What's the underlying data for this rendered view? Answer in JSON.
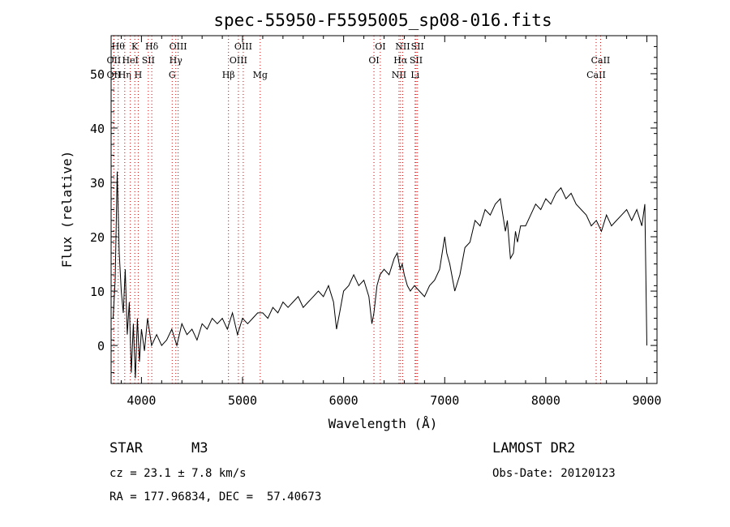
{
  "chart_data": {
    "type": "line",
    "title": "spec-55950-F5595005_sp08-016.fits",
    "xlabel": "Wavelength (Å)",
    "ylabel": "Flux (relative)",
    "xlim": [
      3700,
      9100
    ],
    "ylim": [
      -7,
      57
    ],
    "xticks": [
      4000,
      5000,
      6000,
      7000,
      8000,
      9000
    ],
    "yticks": [
      0,
      10,
      20,
      30,
      40,
      50
    ],
    "grid": false,
    "legend": "none",
    "line_color": "#000000",
    "marker_color": "#cc0000",
    "series": [
      {
        "x": [
          3720,
          3740,
          3760,
          3780,
          3800,
          3820,
          3840,
          3860,
          3880,
          3900,
          3920,
          3940,
          3960,
          3980,
          4000,
          4030,
          4060,
          4100,
          4150,
          4200,
          4250,
          4300,
          4350,
          4400,
          4450,
          4500,
          4550,
          4600,
          4650,
          4700,
          4750,
          4800,
          4850,
          4900,
          4950,
          5000,
          5050,
          5100,
          5150,
          5200,
          5250,
          5300,
          5350,
          5400,
          5450,
          5500,
          5550,
          5600,
          5650,
          5700,
          5750,
          5800,
          5850,
          5900,
          5930,
          5960,
          6000,
          6050,
          6100,
          6150,
          6200,
          6250,
          6280,
          6300,
          6330,
          6360,
          6400,
          6450,
          6500,
          6530,
          6560,
          6580,
          6600,
          6630,
          6660,
          6700,
          6750,
          6800,
          6850,
          6900,
          6950,
          7000,
          7020,
          7050,
          7100,
          7150,
          7200,
          7250,
          7300,
          7350,
          7400,
          7450,
          7500,
          7550,
          7600,
          7620,
          7650,
          7680,
          7700,
          7720,
          7750,
          7800,
          7850,
          7900,
          7950,
          8000,
          8050,
          8100,
          8150,
          8200,
          8250,
          8300,
          8350,
          8400,
          8450,
          8500,
          8550,
          8600,
          8650,
          8700,
          8750,
          8800,
          8850,
          8900,
          8950,
          8980,
          9000
        ],
        "y": [
          5,
          12,
          32,
          17,
          10,
          6,
          14,
          2,
          8,
          -5,
          4,
          -6,
          5,
          -3,
          3,
          -1,
          5,
          0,
          2,
          0,
          1,
          3,
          0,
          4,
          2,
          3,
          1,
          4,
          3,
          5,
          4,
          5,
          3,
          6,
          2,
          5,
          4,
          5,
          6,
          6,
          5,
          7,
          6,
          8,
          7,
          8,
          9,
          7,
          8,
          9,
          10,
          9,
          11,
          8,
          3,
          6,
          10,
          11,
          13,
          11,
          12,
          9,
          4,
          6,
          11,
          13,
          14,
          13,
          16,
          17,
          14,
          15,
          13,
          11,
          10,
          11,
          10,
          9,
          11,
          12,
          14,
          20,
          17,
          15,
          10,
          13,
          18,
          19,
          23,
          22,
          25,
          24,
          26,
          27,
          21,
          23,
          16,
          17,
          21,
          19,
          22,
          22,
          24,
          26,
          25,
          27,
          26,
          28,
          29,
          27,
          28,
          26,
          25,
          24,
          22,
          23,
          21,
          24,
          22,
          23,
          24,
          25,
          23,
          25,
          22,
          26,
          0
        ]
      }
    ],
    "line_markers": [
      {
        "wave": 3770,
        "label": "Hθ",
        "row": 0
      },
      {
        "wave": 3727,
        "label": "OII",
        "row": 1
      },
      {
        "wave": 3727,
        "label": "OII",
        "row": 2
      },
      {
        "wave": 3835,
        "label": "Hη",
        "row": 2
      },
      {
        "wave": 3890,
        "label": "HeI",
        "row": 1
      },
      {
        "wave": 3934,
        "label": "K",
        "row": 0
      },
      {
        "wave": 3968,
        "label": "H",
        "row": 2
      },
      {
        "wave": 4068,
        "label": "SII",
        "row": 1
      },
      {
        "wave": 4102,
        "label": "Hδ",
        "row": 0
      },
      {
        "wave": 4340,
        "label": "Hγ",
        "row": 1
      },
      {
        "wave": 4363,
        "label": "OIII",
        "row": 0
      },
      {
        "wave": 4304,
        "label": "G",
        "row": 2
      },
      {
        "wave": 4861,
        "label": "Hβ",
        "row": 2
      },
      {
        "wave": 4959,
        "label": "OIII",
        "row": 1
      },
      {
        "wave": 5007,
        "label": "OIII",
        "row": 0
      },
      {
        "wave": 5175,
        "label": "Mg",
        "row": 2
      },
      {
        "wave": 6300,
        "label": "OI",
        "row": 1
      },
      {
        "wave": 6363,
        "label": "OI",
        "row": 0
      },
      {
        "wave": 6548,
        "label": "NII",
        "row": 2
      },
      {
        "wave": 6563,
        "label": "Hα",
        "row": 1
      },
      {
        "wave": 6584,
        "label": "NII",
        "row": 0
      },
      {
        "wave": 6707,
        "label": "Li",
        "row": 2
      },
      {
        "wave": 6717,
        "label": "SII",
        "row": 1
      },
      {
        "wave": 6731,
        "label": "SII",
        "row": 0
      },
      {
        "wave": 8498,
        "label": "CaII",
        "row": 2
      },
      {
        "wave": 8542,
        "label": "CaII",
        "row": 1
      }
    ]
  },
  "footer": {
    "object_class": "STAR",
    "subclass": "M3",
    "survey": "LAMOST DR2",
    "cz": "cz = 23.1 ± 7.8 km/s",
    "obs_date": "Obs-Date: 20120123",
    "coords": "RA = 177.96834, DEC =  57.40673"
  }
}
